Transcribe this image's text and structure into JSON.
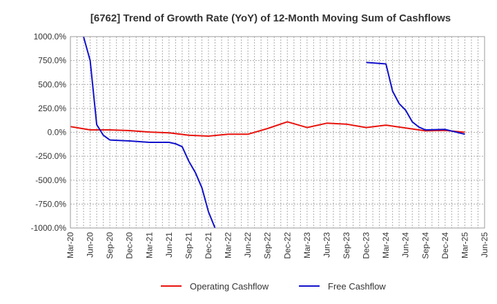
{
  "chart_data": {
    "type": "line",
    "title": "[6762]  Trend of Growth Rate (YoY) of 12-Month Moving Sum of Cashflows",
    "xlabel": "",
    "ylabel": "",
    "ylim": [
      -1000,
      1000
    ],
    "yticks": [
      -1000,
      -750,
      -500,
      -250,
      0,
      250,
      500,
      750,
      1000
    ],
    "y_tick_labels": [
      "-1000.0%",
      "-750.0%",
      "-500.0%",
      "-250.0%",
      "0.0%",
      "250.0%",
      "500.0%",
      "750.0%",
      "1000.0%"
    ],
    "x_tick_labels": [
      "Mar-20",
      "Jun-20",
      "Sep-20",
      "Dec-20",
      "Mar-21",
      "Jun-21",
      "Sep-21",
      "Dec-21",
      "Mar-22",
      "Jun-22",
      "Sep-22",
      "Dec-22",
      "Mar-23",
      "Jun-23",
      "Sep-23",
      "Dec-23",
      "Mar-24",
      "Jun-24",
      "Sep-24",
      "Dec-24",
      "Mar-25",
      "Jun-25"
    ],
    "grid": true,
    "legend_position": "bottom",
    "series": [
      {
        "name": "Operating Cashflow",
        "color": "#e8120c",
        "x": [
          "Mar-20",
          "Jun-20",
          "Sep-20",
          "Dec-20",
          "Mar-21",
          "Jun-21",
          "Sep-21",
          "Dec-21",
          "Mar-22",
          "Jun-22",
          "Sep-22",
          "Dec-22",
          "Mar-23",
          "Jun-23",
          "Sep-23",
          "Dec-23",
          "Mar-24",
          "Jun-24",
          "Sep-24",
          "Dec-24",
          "Mar-25"
        ],
        "values": [
          60,
          25,
          25,
          18,
          3,
          -5,
          -30,
          -40,
          -20,
          -20,
          40,
          110,
          50,
          95,
          85,
          50,
          75,
          45,
          15,
          20,
          0
        ]
      },
      {
        "name": "Free Cashflow",
        "color": "#1010cc",
        "segments": [
          {
            "x": [
              "May-20",
              "Jun-20",
              "Jul-20",
              "Aug-20",
              "Sep-20",
              "Dec-20",
              "Mar-21",
              "Jun-21",
              "Jul-21",
              "Aug-21",
              "Sep-21",
              "Oct-21",
              "Nov-21",
              "Dec-21",
              "Jan-22"
            ],
            "values": [
              1000,
              750,
              80,
              -30,
              -80,
              -90,
              -105,
              -105,
              -120,
              -150,
              -300,
              -420,
              -580,
              -830,
              -1000
            ]
          },
          {
            "x": [
              "Dec-23",
              "Mar-24",
              "Apr-24",
              "May-24",
              "Jun-24",
              "Jul-24",
              "Aug-24",
              "Sep-24",
              "Dec-24",
              "Mar-25"
            ],
            "values": [
              730,
              715,
              430,
              300,
              230,
              110,
              55,
              25,
              30,
              -20
            ]
          }
        ]
      }
    ]
  }
}
